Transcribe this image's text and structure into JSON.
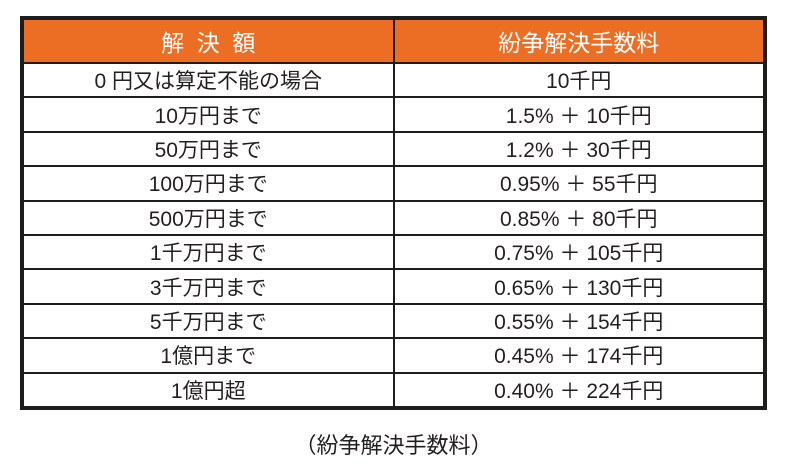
{
  "colors": {
    "header_bg": "#ec6d24",
    "header_text": "#ffffff",
    "border": "#1d1d1b",
    "body_text": "#231f20",
    "row_bg": "#ffffff"
  },
  "table": {
    "columns": [
      {
        "label": "解決額"
      },
      {
        "label": "紛争解決手数料"
      }
    ],
    "rows": [
      {
        "amount": "0 円又は算定不能の場合",
        "fee": "10千円"
      },
      {
        "amount": "10万円まで",
        "fee": "1.5% ＋ 10千円"
      },
      {
        "amount": "50万円まで",
        "fee": "1.2% ＋ 30千円"
      },
      {
        "amount": "100万円まで",
        "fee": "0.95% ＋ 55千円"
      },
      {
        "amount": "500万円まで",
        "fee": "0.85% ＋ 80千円"
      },
      {
        "amount": "1千万円まで",
        "fee": "0.75% ＋ 105千円"
      },
      {
        "amount": "3千万円まで",
        "fee": "0.65% ＋ 130千円"
      },
      {
        "amount": "5千万円まで",
        "fee": "0.55% ＋ 154千円"
      },
      {
        "amount": "1億円まで",
        "fee": "0.45% ＋ 174千円"
      },
      {
        "amount": "1億円超",
        "fee": "0.40% ＋ 224千円"
      }
    ]
  },
  "caption": "（紛争解決手数料）"
}
